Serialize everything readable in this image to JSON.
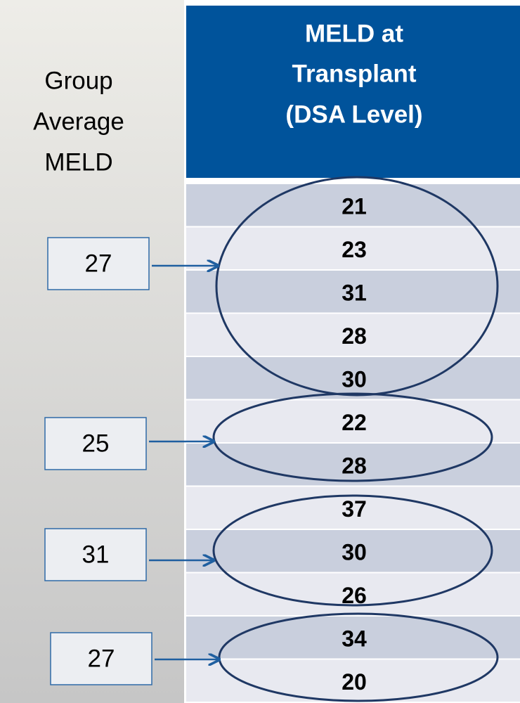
{
  "side_label": [
    "Group",
    "Average",
    "MELD"
  ],
  "header": [
    "MELD at",
    "Transplant",
    "(DSA Level)"
  ],
  "table": {
    "rows": [
      21,
      23,
      31,
      28,
      30,
      22,
      28,
      37,
      30,
      26,
      34,
      20
    ]
  },
  "groups": [
    {
      "average": 27
    },
    {
      "average": 25
    },
    {
      "average": 31
    },
    {
      "average": 27
    }
  ]
}
